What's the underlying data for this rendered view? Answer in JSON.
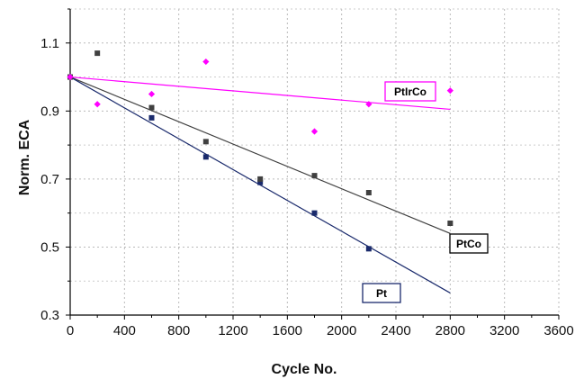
{
  "chart_data": {
    "type": "scatter",
    "xlabel": "Cycle No.",
    "ylabel": "Norm. ECA",
    "xlim": [
      0,
      3600
    ],
    "ylim": [
      0.3,
      1.2
    ],
    "x_ticks": [
      "0",
      "400",
      "800",
      "1200",
      "1600",
      "2000",
      "2400",
      "2800",
      "3200",
      "3600"
    ],
    "y_ticks": [
      "0.3",
      "0.5",
      "0.7",
      "0.9",
      "1.1"
    ],
    "grid": true,
    "series": [
      {
        "name": "PtIrCo",
        "color": "#ff00ff",
        "marker": "diamond",
        "points": [
          [
            0,
            1.0
          ],
          [
            200,
            0.92
          ],
          [
            600,
            0.95
          ],
          [
            1000,
            1.045
          ],
          [
            1800,
            0.84
          ],
          [
            2200,
            0.92
          ],
          [
            2800,
            0.96
          ]
        ],
        "trendline": [
          [
            0,
            1.0
          ],
          [
            2800,
            0.905
          ]
        ]
      },
      {
        "name": "PtCo",
        "color": "#404040",
        "marker": "square",
        "points": [
          [
            0,
            1.0
          ],
          [
            200,
            1.07
          ],
          [
            600,
            0.91
          ],
          [
            1000,
            0.81
          ],
          [
            1400,
            0.7
          ],
          [
            1800,
            0.71
          ],
          [
            2200,
            0.66
          ],
          [
            2800,
            0.57
          ]
        ],
        "trendline": [
          [
            0,
            1.0
          ],
          [
            2800,
            0.54
          ]
        ]
      },
      {
        "name": "Pt",
        "color": "#1a2a6c",
        "marker": "square",
        "points": [
          [
            0,
            1.0
          ],
          [
            600,
            0.88
          ],
          [
            1000,
            0.765
          ],
          [
            1400,
            0.69
          ],
          [
            1800,
            0.6
          ],
          [
            2200,
            0.495
          ]
        ],
        "trendline": [
          [
            0,
            1.0
          ],
          [
            2800,
            0.365
          ]
        ]
      }
    ]
  }
}
